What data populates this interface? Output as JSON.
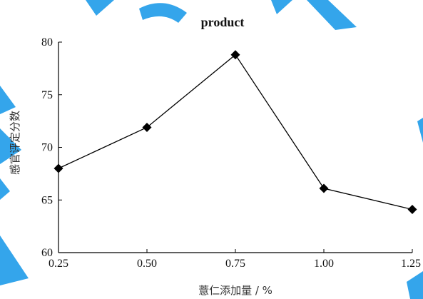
{
  "chart_data": {
    "type": "line",
    "title": "product",
    "xlabel": "薏仁添加量 / %",
    "ylabel": "感官评定分数",
    "x": [
      0.25,
      0.5,
      0.75,
      1.0,
      1.25
    ],
    "x_tick_labels": [
      "0.25",
      "0.50",
      "0.75",
      "1.00",
      "1.25"
    ],
    "y_ticks": [
      60,
      65,
      70,
      75,
      80
    ],
    "y_tick_labels": [
      "60",
      "65",
      "70",
      "75",
      "80"
    ],
    "xlim": [
      0.25,
      1.25
    ],
    "ylim": [
      60,
      80
    ],
    "series": [
      {
        "values": [
          68.0,
          71.9,
          78.8,
          66.1,
          64.1
        ],
        "marker": "diamond",
        "color": "#000000"
      }
    ],
    "grid": false,
    "watermark_color": "#1e9be9"
  }
}
